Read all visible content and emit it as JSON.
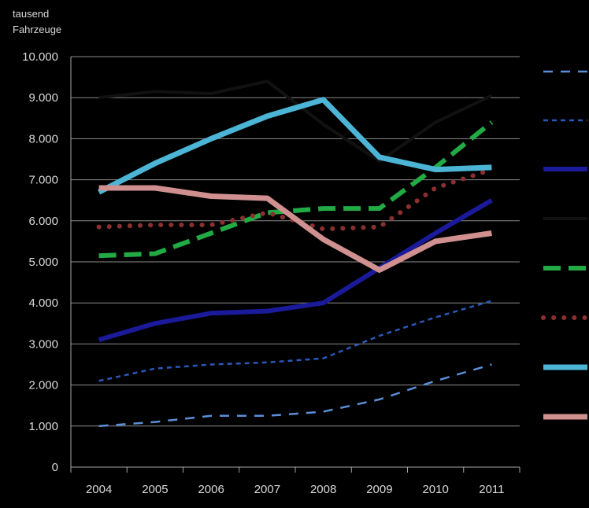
{
  "chart_data": {
    "type": "line",
    "title": "",
    "ylabel_lines": [
      "tausend",
      "Fahrzeuge"
    ],
    "xlabel": "",
    "x": [
      "2004",
      "2005",
      "2006",
      "2007",
      "2008",
      "2009",
      "2010",
      "2011"
    ],
    "ylim": [
      0,
      10000
    ],
    "yticks": [
      "0",
      "1.000",
      "2.000",
      "3.000",
      "4.000",
      "5.000",
      "6.000",
      "7.000",
      "8.000",
      "9.000",
      "10.000"
    ],
    "ytick_values": [
      0,
      1000,
      2000,
      3000,
      4000,
      5000,
      6000,
      7000,
      8000,
      9000,
      10000
    ],
    "grid": true,
    "legend_position": "right",
    "series": [
      {
        "values": [
          1000,
          1100,
          1250,
          1250,
          1350,
          1650,
          2100,
          2500
        ],
        "color": "#5b8fd9",
        "style": "long-dash",
        "width": 2.5
      },
      {
        "values": [
          2100,
          2400,
          2500,
          2550,
          2650,
          3200,
          3650,
          4050
        ],
        "color": "#2a58b8",
        "style": "short-dash",
        "width": 2.5
      },
      {
        "values": [
          3100,
          3500,
          3750,
          3800,
          4000,
          4850,
          5700,
          6500
        ],
        "color": "#1a1a9a",
        "style": "solid",
        "width": 6
      },
      {
        "values": [
          9000,
          9150,
          9100,
          9400,
          8350,
          7450,
          8400,
          9050
        ],
        "color": "#111111",
        "style": "solid",
        "width": 4
      },
      {
        "values": [
          5150,
          5200,
          5700,
          6200,
          6300,
          6300,
          7300,
          8400
        ],
        "color": "#22aa44",
        "style": "dash",
        "width": 6
      },
      {
        "values": [
          5850,
          5900,
          5900,
          6200,
          5800,
          5850,
          6800,
          7250
        ],
        "color": "#8b3030",
        "style": "dot",
        "width": 6
      },
      {
        "values": [
          6700,
          7400,
          8000,
          8550,
          8950,
          7550,
          7250,
          7300
        ],
        "color": "#4cb5d5",
        "style": "solid",
        "width": 7
      },
      {
        "values": [
          6800,
          6800,
          6600,
          6550,
          5550,
          4800,
          5500,
          5700
        ],
        "color": "#d09090",
        "style": "solid",
        "width": 7
      }
    ]
  }
}
